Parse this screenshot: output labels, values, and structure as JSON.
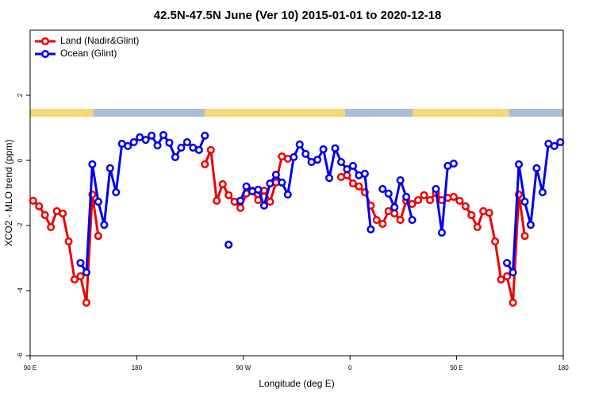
{
  "chart_data": {
    "type": "line",
    "title": "42.5N-47.5N June (Ver 10)   2015-01-01 to 2020-12-18",
    "xlabel": "Longitude (deg E)",
    "ylabel": "XCO2 - MLO trend (ppm)",
    "x": [
      92.5,
      97.5,
      102.5,
      107.5,
      112.5,
      117.5,
      122.5,
      127.5,
      132.5,
      137.5,
      142.5,
      147.5,
      152.5,
      157.5,
      162.5,
      167.5,
      172.5,
      177.5,
      182.5,
      187.5,
      192.5,
      197.5,
      202.5,
      207.5,
      212.5,
      217.5,
      222.5,
      227.5,
      232.5,
      237.5,
      242.5,
      247.5,
      252.5,
      257.5,
      262.5,
      267.5,
      272.5,
      277.5,
      282.5,
      287.5,
      292.5,
      297.5,
      302.5,
      307.5,
      312.5,
      317.5,
      322.5,
      327.5,
      332.5,
      337.5,
      342.5,
      347.5,
      352.5,
      357.5,
      362.5,
      367.5,
      372.5,
      377.5,
      382.5,
      387.5,
      392.5,
      397.5,
      402.5,
      407.5,
      412.5,
      417.5,
      422.5,
      427.5,
      432.5,
      437.5,
      442.5,
      447.5,
      452.5,
      457.5,
      462.5,
      467.5,
      472.5,
      477.5,
      482.5,
      487.5,
      492.5,
      497.5,
      502.5,
      507.5,
      512.5,
      517.5,
      522.5,
      527.5,
      532.5,
      537.5
    ],
    "series": [
      {
        "name": "Land (Nadir&Glint)",
        "color": "#ee0000",
        "values": [
          -1.24,
          -1.41,
          -1.68,
          -2.05,
          -1.56,
          -1.63,
          -2.49,
          -3.66,
          -3.56,
          -4.37,
          -1.05,
          -2.32,
          null,
          null,
          null,
          null,
          null,
          null,
          null,
          null,
          null,
          null,
          null,
          null,
          null,
          null,
          null,
          null,
          null,
          -0.12,
          0.32,
          -1.24,
          -0.73,
          -1.07,
          -1.27,
          -1.46,
          -1.02,
          -0.93,
          -1.22,
          -0.93,
          -1.27,
          -0.68,
          0.12,
          0.05,
          null,
          null,
          null,
          null,
          null,
          null,
          null,
          null,
          -0.51,
          -0.46,
          -0.71,
          -0.8,
          -0.98,
          -1.39,
          -1.83,
          -1.95,
          -1.56,
          -1.63,
          -1.83,
          -1.24,
          -1.34,
          -1.22,
          -1.07,
          -1.22,
          -1.0,
          -1.22,
          -1.15,
          -1.12,
          -1.24,
          -1.41,
          -1.68,
          -2.05,
          -1.56,
          -1.61,
          -2.49,
          -3.66,
          -3.56,
          -4.37,
          -1.05,
          -2.32,
          null,
          null,
          null,
          null,
          null,
          null
        ]
      },
      {
        "name": "Ocean (Glint)",
        "color": "#0000ee",
        "values": [
          null,
          null,
          null,
          null,
          null,
          null,
          null,
          null,
          -3.15,
          -3.44,
          -0.12,
          -1.27,
          -1.98,
          -0.24,
          -0.98,
          0.51,
          0.44,
          0.56,
          0.71,
          0.63,
          0.76,
          0.46,
          0.78,
          0.54,
          0.1,
          0.39,
          0.56,
          0.39,
          0.32,
          0.76,
          null,
          null,
          null,
          -2.59,
          null,
          -1.24,
          -0.8,
          -0.95,
          -0.9,
          -1.39,
          -0.71,
          -0.44,
          -0.68,
          -1.05,
          0.1,
          0.49,
          0.2,
          -0.05,
          0.02,
          0.34,
          -0.54,
          0.37,
          -0.05,
          -0.27,
          -0.17,
          -0.46,
          -0.41,
          -2.12,
          null,
          -0.88,
          -1.02,
          -1.44,
          -0.61,
          -1.12,
          -1.83,
          null,
          null,
          null,
          -0.88,
          -2.22,
          -0.17,
          -0.1,
          null,
          null,
          null,
          null,
          null,
          null,
          null,
          null,
          -3.15,
          -3.44,
          -0.12,
          -1.27,
          -1.98,
          -0.24,
          -0.98,
          0.51,
          0.44,
          0.56
        ]
      }
    ],
    "xlim": [
      90,
      540
    ],
    "xticks": [
      {
        "value": 90,
        "label": "90 E"
      },
      180,
      {
        "value": 270,
        "label": "90 W"
      },
      {
        "value": 360,
        "label": "0"
      },
      {
        "value": 450,
        "label": "90 E"
      },
      {
        "value": 540,
        "label": "180"
      }
    ],
    "ylim": [
      -6,
      4
    ],
    "yticks": [
      -6,
      -4,
      -2,
      0,
      2
    ],
    "legend": "upper left"
  }
}
